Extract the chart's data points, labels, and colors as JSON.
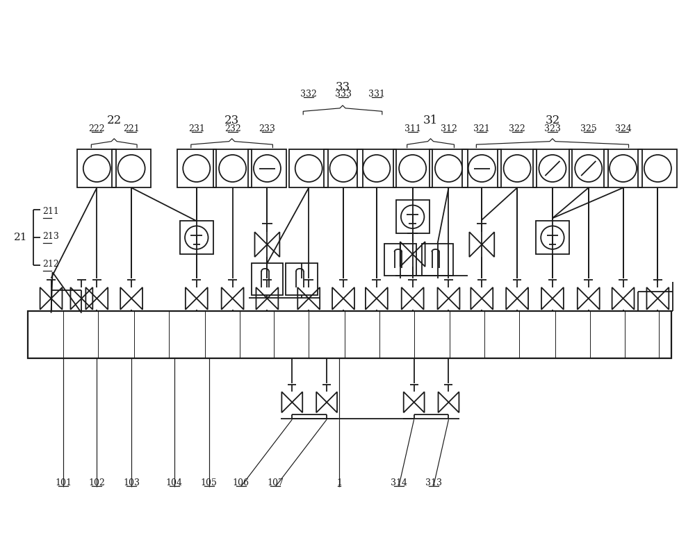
{
  "bg": "#ffffff",
  "lc": "#1a1a1a",
  "lw": 1.3,
  "lw_bus": 1.6,
  "lw_thin": 0.85
}
